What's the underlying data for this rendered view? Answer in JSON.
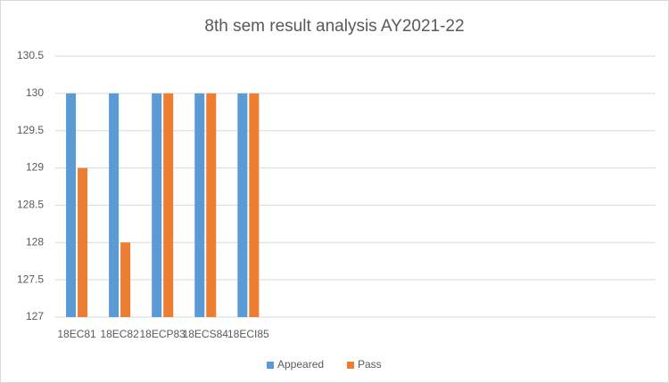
{
  "chart_data": {
    "type": "bar",
    "title": "8th sem result analysis AY2021-22",
    "categories": [
      "18EC81",
      "18EC82",
      "18ECP83",
      "18ECS84",
      "18ECI85",
      null,
      null,
      null,
      null,
      null,
      null,
      null,
      null,
      null
    ],
    "series": [
      {
        "name": "Appeared",
        "color": "#5b9bd5",
        "values": [
          130,
          130,
          130,
          130,
          130,
          null,
          null,
          null,
          null,
          null,
          null,
          null,
          null,
          null
        ]
      },
      {
        "name": "Pass",
        "color": "#ed7d31",
        "values": [
          129,
          128,
          130,
          130,
          130,
          null,
          null,
          null,
          null,
          null,
          null,
          null,
          null,
          null
        ]
      }
    ],
    "ylim": [
      127,
      130.5
    ],
    "yticks": [
      127,
      127.5,
      128,
      128.5,
      129,
      129.5,
      130,
      130.5
    ],
    "grid": true,
    "legend": "bottom"
  }
}
